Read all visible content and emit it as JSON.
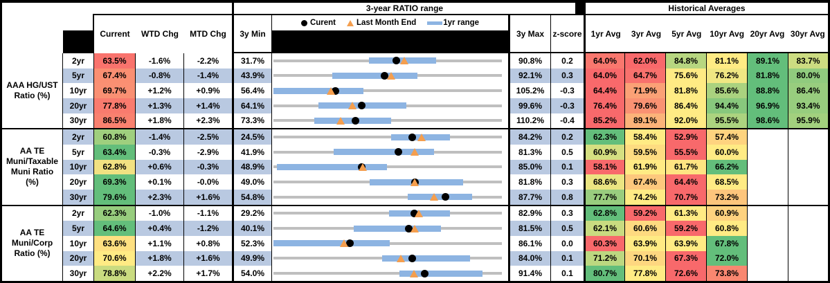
{
  "labels": {
    "ratio_range_title": "3-year RATIO range",
    "historical_title": "Historical Averages",
    "current": "Current",
    "wtd_chg": "WTD Chg",
    "mtd_chg": "MTD Chg",
    "min_3y": "3y Min",
    "max_3y": "3y Max",
    "z_score": "z-score",
    "avg_headers": [
      "1yr Avg",
      "3yr Avg",
      "5yr Avg",
      "10yr Avg",
      "20yr Avg",
      "30yr Avg"
    ],
    "legend_current": "Curent",
    "legend_last_month": "Last Month End",
    "legend_range": "1yr range"
  },
  "colors": {
    "stripe": "#B9C9E1",
    "white": "#FFFFFF",
    "bar_blue": "#8DB4E2",
    "track_gray": "#BFBFBF",
    "marker_orange": "#F49E4E",
    "marker_black": "#000000",
    "heat_red": "#F8696B",
    "heat_yellow": "#FFEB84",
    "heat_green": "#63BE7B"
  },
  "chart_data": {
    "type": "range_bar_table",
    "note": "Each row: dot=current, triangle=last month end, blue bar=1yr range, gray track spans 3y min to 3y max",
    "groups": [
      {
        "label_lines": [
          "AAA HG/UST",
          "Ratio (%)"
        ],
        "rows": [
          {
            "period": "2yr",
            "current": "63.5%",
            "current_bg": "#F9736D",
            "wtd": "-1.6%",
            "mtd": "-2.2%",
            "min": "31.7%",
            "max": "90.8%",
            "z": "0.2",
            "range": {
              "axis_min": 31.7,
              "axis_max": 90.8,
              "current": 63.5,
              "last_month_end": 65.7,
              "yr_lo": 56.5,
              "yr_hi": 73.8
            },
            "avgs": [
              {
                "text": "64.0%",
                "bg": "#F9776E"
              },
              {
                "text": "62.0%",
                "bg": "#F8696B"
              },
              {
                "text": "84.8%",
                "bg": "#B7D680"
              },
              {
                "text": "81.1%",
                "bg": "#FFEB84"
              },
              {
                "text": "89.1%",
                "bg": "#63BE7B"
              },
              {
                "text": "83.7%",
                "bg": "#CCDC81"
              }
            ]
          },
          {
            "period": "5yr",
            "current": "67.4%",
            "current_bg": "#FA8F72",
            "wtd": "-0.8%",
            "mtd": "-1.4%",
            "min": "43.9%",
            "max": "92.1%",
            "z": "0.3",
            "range": {
              "axis_min": 43.9,
              "axis_max": 92.1,
              "current": 67.4,
              "last_month_end": 68.8,
              "yr_lo": 56.3,
              "yr_hi": 74.3
            },
            "avgs": [
              {
                "text": "64.0%",
                "bg": "#F8696B"
              },
              {
                "text": "64.7%",
                "bg": "#F8716D"
              },
              {
                "text": "75.6%",
                "bg": "#FFEB84"
              },
              {
                "text": "76.2%",
                "bg": "#F0E783"
              },
              {
                "text": "81.8%",
                "bg": "#63BE7B"
              },
              {
                "text": "80.0%",
                "bg": "#90CB7E"
              }
            ]
          },
          {
            "period": "10yr",
            "current": "69.7%",
            "current_bg": "#FA9073",
            "wtd": "+1.2%",
            "mtd": "+0.9%",
            "min": "56.4%",
            "max": "105.2%",
            "z": "-0.3",
            "range": {
              "axis_min": 56.4,
              "axis_max": 105.2,
              "current": 69.7,
              "last_month_end": 68.8,
              "yr_lo": 56.4,
              "yr_hi": 75.6
            },
            "avgs": [
              {
                "text": "64.4%",
                "bg": "#F8696B"
              },
              {
                "text": "71.9%",
                "bg": "#FBA176"
              },
              {
                "text": "81.8%",
                "bg": "#FFEB84"
              },
              {
                "text": "85.6%",
                "bg": "#AAD27F"
              },
              {
                "text": "88.8%",
                "bg": "#63BE7B"
              },
              {
                "text": "86.4%",
                "bg": "#98CD7E"
              }
            ]
          },
          {
            "period": "20yr",
            "current": "77.8%",
            "current_bg": "#F97B6E",
            "wtd": "+1.3%",
            "mtd": "+1.4%",
            "min": "64.1%",
            "max": "99.6%",
            "z": "-0.3",
            "range": {
              "axis_min": 64.1,
              "axis_max": 99.6,
              "current": 77.8,
              "last_month_end": 76.4,
              "yr_lo": 71.1,
              "yr_hi": 84.8
            },
            "avgs": [
              {
                "text": "76.4%",
                "bg": "#F8696B"
              },
              {
                "text": "79.6%",
                "bg": "#FA9273"
              },
              {
                "text": "86.4%",
                "bg": "#FFEB84"
              },
              {
                "text": "94.4%",
                "bg": "#88C87D"
              },
              {
                "text": "96.9%",
                "bg": "#63BE7B"
              },
              {
                "text": "93.4%",
                "bg": "#97CD7E"
              }
            ]
          },
          {
            "period": "30yr",
            "current": "86.5%",
            "current_bg": "#F9816F",
            "wtd": "+1.8%",
            "mtd": "+2.3%",
            "min": "73.3%",
            "max": "110.2%",
            "z": "-0.4",
            "range": {
              "axis_min": 73.3,
              "axis_max": 110.2,
              "current": 86.5,
              "last_month_end": 84.2,
              "yr_lo": 79.9,
              "yr_hi": 92.3
            },
            "avgs": [
              {
                "text": "85.2%",
                "bg": "#F8696B"
              },
              {
                "text": "89.1%",
                "bg": "#FCB379"
              },
              {
                "text": "92.0%",
                "bg": "#FFEB84"
              },
              {
                "text": "95.5%",
                "bg": "#ACD37F"
              },
              {
                "text": "98.6%",
                "bg": "#63BE7B"
              },
              {
                "text": "95.9%",
                "bg": "#A2D07E"
              }
            ]
          }
        ]
      },
      {
        "label_lines": [
          "AA TE",
          "Muni/Taxable",
          "Muni Ratio",
          "(%)"
        ],
        "rows": [
          {
            "period": "2yr",
            "current": "60.8%",
            "current_bg": "#9FCF7E",
            "wtd": "-1.4%",
            "mtd": "-2.5%",
            "min": "24.5%",
            "max": "84.2%",
            "z": "0.2",
            "range": {
              "axis_min": 24.5,
              "axis_max": 84.2,
              "current": 60.8,
              "last_month_end": 63.3,
              "yr_lo": 55.2,
              "yr_hi": 70.6
            },
            "avgs": [
              {
                "text": "62.3%",
                "bg": "#63BE7B"
              },
              {
                "text": "58.4%",
                "bg": "#FFEB84"
              },
              {
                "text": "52.9%",
                "bg": "#F8696B"
              },
              {
                "text": "57.4%",
                "bg": "#FED37F"
              },
              null,
              null
            ]
          },
          {
            "period": "5yr",
            "current": "63.4%",
            "current_bg": "#63BE7B",
            "wtd": "-0.3%",
            "mtd": "-2.9%",
            "min": "41.9%",
            "max": "81.3%",
            "z": "0.5",
            "range": {
              "axis_min": 41.9,
              "axis_max": 81.3,
              "current": 63.4,
              "last_month_end": 66.3,
              "yr_lo": 52.3,
              "yr_hi": 69.6
            },
            "avgs": [
              {
                "text": "60.9%",
                "bg": "#D5DF81"
              },
              {
                "text": "59.5%",
                "bg": "#FEDC81"
              },
              {
                "text": "55.5%",
                "bg": "#F8696B"
              },
              {
                "text": "60.0%",
                "bg": "#FFEB84"
              },
              null,
              null
            ]
          },
          {
            "period": "10yr",
            "current": "62.8%",
            "current_bg": "#F2E182",
            "wtd": "+0.6%",
            "mtd": "-0.3%",
            "min": "48.9%",
            "max": "85.0%",
            "z": "0.1",
            "range": {
              "axis_min": 48.9,
              "axis_max": 85.0,
              "current": 62.8,
              "last_month_end": 63.1,
              "yr_lo": 49.4,
              "yr_hi": 66.8
            },
            "avgs": [
              {
                "text": "58.1%",
                "bg": "#F8696B"
              },
              {
                "text": "61.9%",
                "bg": "#FFEB84"
              },
              {
                "text": "61.7%",
                "bg": "#FEE482"
              },
              {
                "text": "66.2%",
                "bg": "#63BE7B"
              },
              null,
              null
            ]
          },
          {
            "period": "20yr",
            "current": "69.3%",
            "current_bg": "#63BE7B",
            "wtd": "+0.1%",
            "mtd": "-0.0%",
            "min": "49.0%",
            "max": "81.8%",
            "z": "0.3",
            "range": {
              "axis_min": 49.0,
              "axis_max": 81.8,
              "current": 69.3,
              "last_month_end": 69.3,
              "yr_lo": 62.8,
              "yr_hi": 76.2
            },
            "avgs": [
              {
                "text": "68.6%",
                "bg": "#EBE582"
              },
              {
                "text": "67.4%",
                "bg": "#FDC87D"
              },
              {
                "text": "64.4%",
                "bg": "#F8696B"
              },
              {
                "text": "68.5%",
                "bg": "#FFEB84"
              },
              null,
              null
            ]
          },
          {
            "period": "30yr",
            "current": "79.6%",
            "current_bg": "#63BE7B",
            "wtd": "+2.3%",
            "mtd": "+1.6%",
            "min": "54.8%",
            "max": "87.7%",
            "z": "0.8",
            "range": {
              "axis_min": 54.8,
              "axis_max": 87.7,
              "current": 79.6,
              "last_month_end": 78.0,
              "yr_lo": 74.1,
              "yr_hi": 83.4
            },
            "avgs": [
              {
                "text": "77.7%",
                "bg": "#99CD7E"
              },
              {
                "text": "74.2%",
                "bg": "#FFEB84"
              },
              {
                "text": "70.7%",
                "bg": "#F8696B"
              },
              {
                "text": "73.2%",
                "bg": "#FDC57C"
              },
              null,
              null
            ]
          }
        ]
      },
      {
        "label_lines": [
          "AA TE",
          "Muni/Corp",
          "Ratio (%)"
        ],
        "rows": [
          {
            "period": "2yr",
            "current": "62.3%",
            "current_bg": "#97CD7E",
            "wtd": "-1.0%",
            "mtd": "-1.1%",
            "min": "29.2%",
            "max": "82.9%",
            "z": "0.3",
            "range": {
              "axis_min": 29.2,
              "axis_max": 82.9,
              "current": 62.3,
              "last_month_end": 63.4,
              "yr_lo": 56.3,
              "yr_hi": 70.7
            },
            "avgs": [
              {
                "text": "62.8%",
                "bg": "#63BE7B"
              },
              {
                "text": "59.2%",
                "bg": "#F8696B"
              },
              {
                "text": "61.3%",
                "bg": "#FFEB84"
              },
              {
                "text": "60.9%",
                "bg": "#FED27F"
              },
              null,
              null
            ]
          },
          {
            "period": "5yr",
            "current": "64.6%",
            "current_bg": "#63BE7B",
            "wtd": "+0.4%",
            "mtd": "-1.2%",
            "min": "40.1%",
            "max": "81.5%",
            "z": "0.5",
            "range": {
              "axis_min": 40.1,
              "axis_max": 81.5,
              "current": 64.6,
              "last_month_end": 65.8,
              "yr_lo": 54.7,
              "yr_hi": 70.5
            },
            "avgs": [
              {
                "text": "62.1%",
                "bg": "#C9DB80"
              },
              {
                "text": "60.6%",
                "bg": "#FEDA80"
              },
              {
                "text": "59.2%",
                "bg": "#F8696B"
              },
              {
                "text": "60.8%",
                "bg": "#FFEB84"
              },
              null,
              null
            ]
          },
          {
            "period": "10yr",
            "current": "63.6%",
            "current_bg": "#FEE081",
            "wtd": "+1.1%",
            "mtd": "+0.8%",
            "min": "52.3%",
            "max": "86.1%",
            "z": "0.0",
            "range": {
              "axis_min": 52.3,
              "axis_max": 86.1,
              "current": 63.6,
              "last_month_end": 62.8,
              "yr_lo": 52.3,
              "yr_hi": 69.5
            },
            "avgs": [
              {
                "text": "60.3%",
                "bg": "#F8696B"
              },
              {
                "text": "63.9%",
                "bg": "#FFEB84"
              },
              {
                "text": "63.9%",
                "bg": "#FFEB84"
              },
              {
                "text": "67.8%",
                "bg": "#63BE7B"
              },
              null,
              null
            ]
          },
          {
            "period": "20yr",
            "current": "70.6%",
            "current_bg": "#FFEB84",
            "wtd": "+1.8%",
            "mtd": "+1.6%",
            "min": "49.9%",
            "max": "84.0%",
            "z": "0.1",
            "range": {
              "axis_min": 49.9,
              "axis_max": 84.0,
              "current": 70.6,
              "last_month_end": 69.0,
              "yr_lo": 66.1,
              "yr_hi": 79.2
            },
            "avgs": [
              {
                "text": "71.2%",
                "bg": "#BCD880"
              },
              {
                "text": "70.1%",
                "bg": "#FED780"
              },
              {
                "text": "67.3%",
                "bg": "#F8696B"
              },
              {
                "text": "72.0%",
                "bg": "#63BE7B"
              },
              null,
              null
            ]
          },
          {
            "period": "30yr",
            "current": "78.8%",
            "current_bg": "#C9DB80",
            "wtd": "+2.2%",
            "mtd": "+1.7%",
            "min": "54.0%",
            "max": "91.4%",
            "z": "0.1",
            "range": {
              "axis_min": 54.0,
              "axis_max": 91.4,
              "current": 78.8,
              "last_month_end": 77.1,
              "yr_lo": 74.6,
              "yr_hi": 88.2
            },
            "avgs": [
              {
                "text": "80.7%",
                "bg": "#63BE7B"
              },
              {
                "text": "77.8%",
                "bg": "#FFEB84"
              },
              {
                "text": "72.6%",
                "bg": "#F8696B"
              },
              {
                "text": "73.8%",
                "bg": "#F98770"
              },
              null,
              null
            ]
          }
        ]
      }
    ]
  }
}
